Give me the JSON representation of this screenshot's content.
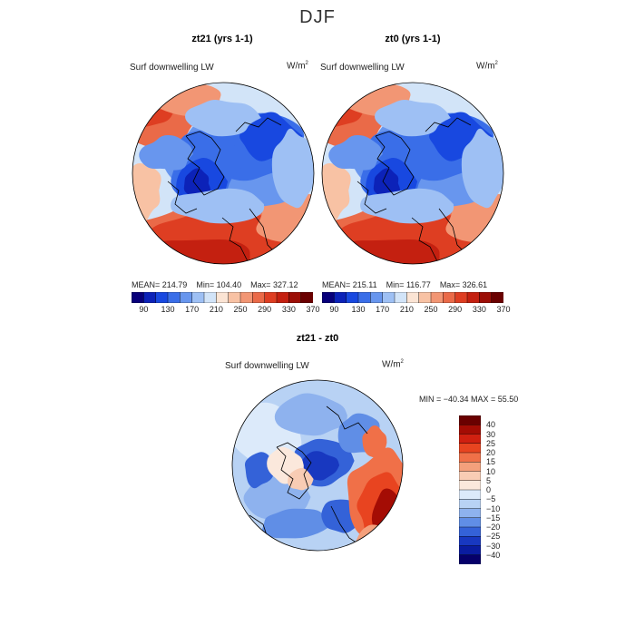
{
  "title": "DJF",
  "panels": [
    {
      "id": "zt21",
      "title": "zt21 (yrs 1-1)",
      "variable": "Surf downwelling LW",
      "units": "W/m",
      "units_exp": "2",
      "stats": {
        "mean": "214.79",
        "min": "104.40",
        "max": "327.12"
      }
    },
    {
      "id": "zt0",
      "title": "zt0 (yrs 1-1)",
      "variable": "Surf downwelling LW",
      "units": "W/m",
      "units_exp": "2",
      "stats": {
        "mean": "215.11",
        "min": "116.77",
        "max": "326.61"
      }
    }
  ],
  "stat_labels": {
    "mean": "MEAN=",
    "min": "Min=",
    "max_left": "Max=",
    "max_right": "Max="
  },
  "diff": {
    "title": "zt21 - zt0",
    "variable": "Surf downwelling LW",
    "units": "W/m",
    "units_exp": "2",
    "minmax": "MIN = −40.34 MAX =  55.50"
  },
  "chart_data": [
    {
      "type": "heatmap",
      "title": "zt21 (yrs 1-1)",
      "projection": "north polar stereographic",
      "variable": "Surf downwelling LW",
      "units": "W/m^2",
      "stats": {
        "mean": 214.79,
        "min": 104.4,
        "max": 327.12
      },
      "colorbar": {
        "ticks": [
          90,
          130,
          170,
          210,
          250,
          290,
          330,
          370
        ]
      }
    },
    {
      "type": "heatmap",
      "title": "zt0 (yrs 1-1)",
      "projection": "north polar stereographic",
      "variable": "Surf downwelling LW",
      "units": "W/m^2",
      "stats": {
        "mean": 215.11,
        "min": 116.77,
        "max": 326.61
      },
      "colorbar": {
        "ticks": [
          90,
          130,
          170,
          210,
          250,
          290,
          330,
          370
        ]
      }
    },
    {
      "type": "heatmap",
      "title": "zt21 - zt0",
      "projection": "north polar stereographic",
      "variable": "Surf downwelling LW",
      "units": "W/m^2",
      "stats": {
        "min": -40.34,
        "max": 55.5
      },
      "colorbar": {
        "ticks": [
          "40",
          "30",
          "25",
          "20",
          "15",
          "10",
          "5",
          "0",
          "−5",
          "−10",
          "−15",
          "−20",
          "−25",
          "−30",
          "−40"
        ]
      }
    }
  ],
  "colors": {
    "lw_scale": [
      "#08007a",
      "#0c22b8",
      "#1848e0",
      "#3a6ee8",
      "#6896ee",
      "#9ec0f4",
      "#d2e4f8",
      "#fbe4d4",
      "#f8c2a4",
      "#f29674",
      "#ea6a48",
      "#de3e22",
      "#c42010",
      "#9c0e06",
      "#6a0000"
    ],
    "diff_scale": [
      "#6a0000",
      "#a40c04",
      "#d02010",
      "#e84420",
      "#f07048",
      "#f4a07c",
      "#f8ccb4",
      "#fbe8dc",
      "#dceafa",
      "#b8d2f4",
      "#8eb2ee",
      "#608ee6",
      "#3462d8",
      "#1838c0",
      "#0a1ca0",
      "#06006a"
    ]
  }
}
